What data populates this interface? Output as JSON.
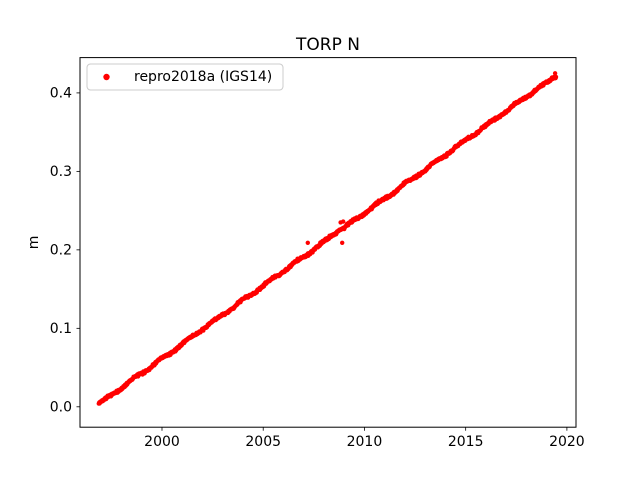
{
  "chart_data": {
    "type": "scatter",
    "title": "TORP N",
    "xlabel": "",
    "ylabel": "m",
    "xlim": [
      1995.95,
      2020.45
    ],
    "ylim": [
      -0.026,
      0.445
    ],
    "xticks": [
      2000,
      2005,
      2010,
      2015,
      2020
    ],
    "xtick_labels": [
      "2000",
      "2005",
      "2010",
      "2015",
      "2020"
    ],
    "yticks": [
      0.0,
      0.1,
      0.2,
      0.3,
      0.4
    ],
    "ytick_labels": [
      "0.0",
      "0.1",
      "0.2",
      "0.3",
      "0.4"
    ],
    "grid": false,
    "legend": {
      "position": "upper left",
      "entries": [
        {
          "label": "repro2018a (IGS14)",
          "marker": "dot",
          "color": "#ff0000"
        }
      ]
    },
    "series": [
      {
        "name": "repro2018a (IGS14)",
        "color": "#ff0000",
        "marker": "dot",
        "marker_radius_px": 2.2,
        "x_start": 1996.88,
        "x_end": 2019.47,
        "trend_rate_m_per_yr": 0.0186,
        "noise_m": 0.002,
        "wiggle_amp_m": 0.0013,
        "wiggle_period_yr": 1.35,
        "sample_step_yr": 0.02,
        "anchors": [
          [
            1996.88,
            0.004
          ],
          [
            1997.5,
            0.015
          ],
          [
            1998.0,
            0.024
          ],
          [
            1998.5,
            0.034
          ],
          [
            1999.0,
            0.043
          ],
          [
            2000.0,
            0.061
          ],
          [
            2001.0,
            0.08
          ],
          [
            2002.0,
            0.099
          ],
          [
            2003.0,
            0.117
          ],
          [
            2004.0,
            0.136
          ],
          [
            2005.0,
            0.154
          ],
          [
            2006.0,
            0.173
          ],
          [
            2007.0,
            0.191
          ],
          [
            2008.0,
            0.21
          ],
          [
            2008.85,
            0.228
          ],
          [
            2009.0,
            0.228
          ],
          [
            2010.0,
            0.247
          ],
          [
            2011.0,
            0.265
          ],
          [
            2012.0,
            0.284
          ],
          [
            2013.0,
            0.302
          ],
          [
            2014.0,
            0.321
          ],
          [
            2015.0,
            0.34
          ],
          [
            2016.0,
            0.358
          ],
          [
            2017.0,
            0.377
          ],
          [
            2018.0,
            0.395
          ],
          [
            2018.7,
            0.408
          ],
          [
            2019.1,
            0.414
          ],
          [
            2019.3,
            0.42
          ],
          [
            2019.47,
            0.422
          ]
        ],
        "outliers": [
          [
            2007.2,
            0.209
          ],
          [
            2008.9,
            0.209
          ],
          [
            2008.82,
            0.235
          ],
          [
            2008.95,
            0.236
          ],
          [
            2019.42,
            0.425
          ]
        ]
      }
    ]
  }
}
